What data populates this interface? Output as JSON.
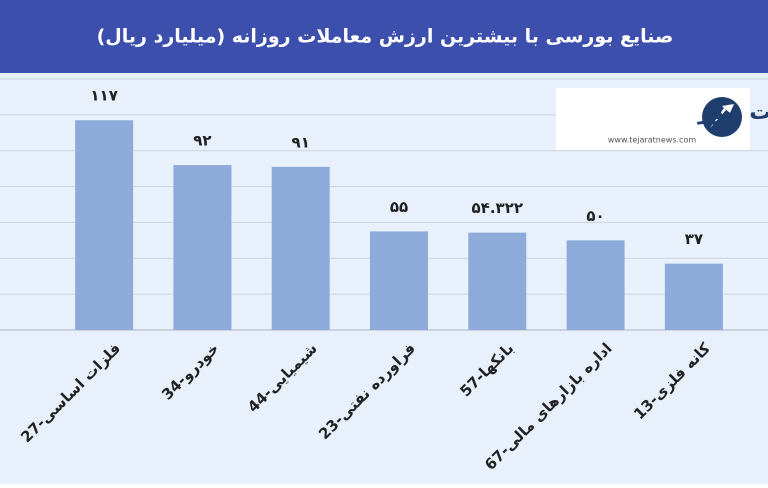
{
  "chart_data": {
    "type": "bar",
    "title": "صنایع بورسی با بیشترین ارزش معاملات روزانه  (میلیارد ریال)",
    "categories": [
      "27-فلزات اساسی",
      "34-خودرو",
      "44-شیمیایی",
      "23-فراورده نفتی",
      "57-بانکها",
      "67-اداره بازارهای مالی",
      "13-کانه فلزی"
    ],
    "values": [
      117,
      92,
      91,
      55,
      54.322,
      50,
      37
    ],
    "value_labels": [
      "۱۱۷",
      "۹۲",
      "۹۱",
      "۵۵",
      "۵۴.۳۲۲",
      "۵۰",
      "۳۷"
    ],
    "color": "#8eaadb",
    "ylim": [
      0,
      140
    ],
    "yticks": [
      0,
      20,
      40,
      60,
      80,
      100,
      120,
      140
    ],
    "ytick_labels": false,
    "grid": true
  },
  "logo": {
    "name": "تجارت نیوز",
    "url": "www.tejaratnews.com"
  }
}
